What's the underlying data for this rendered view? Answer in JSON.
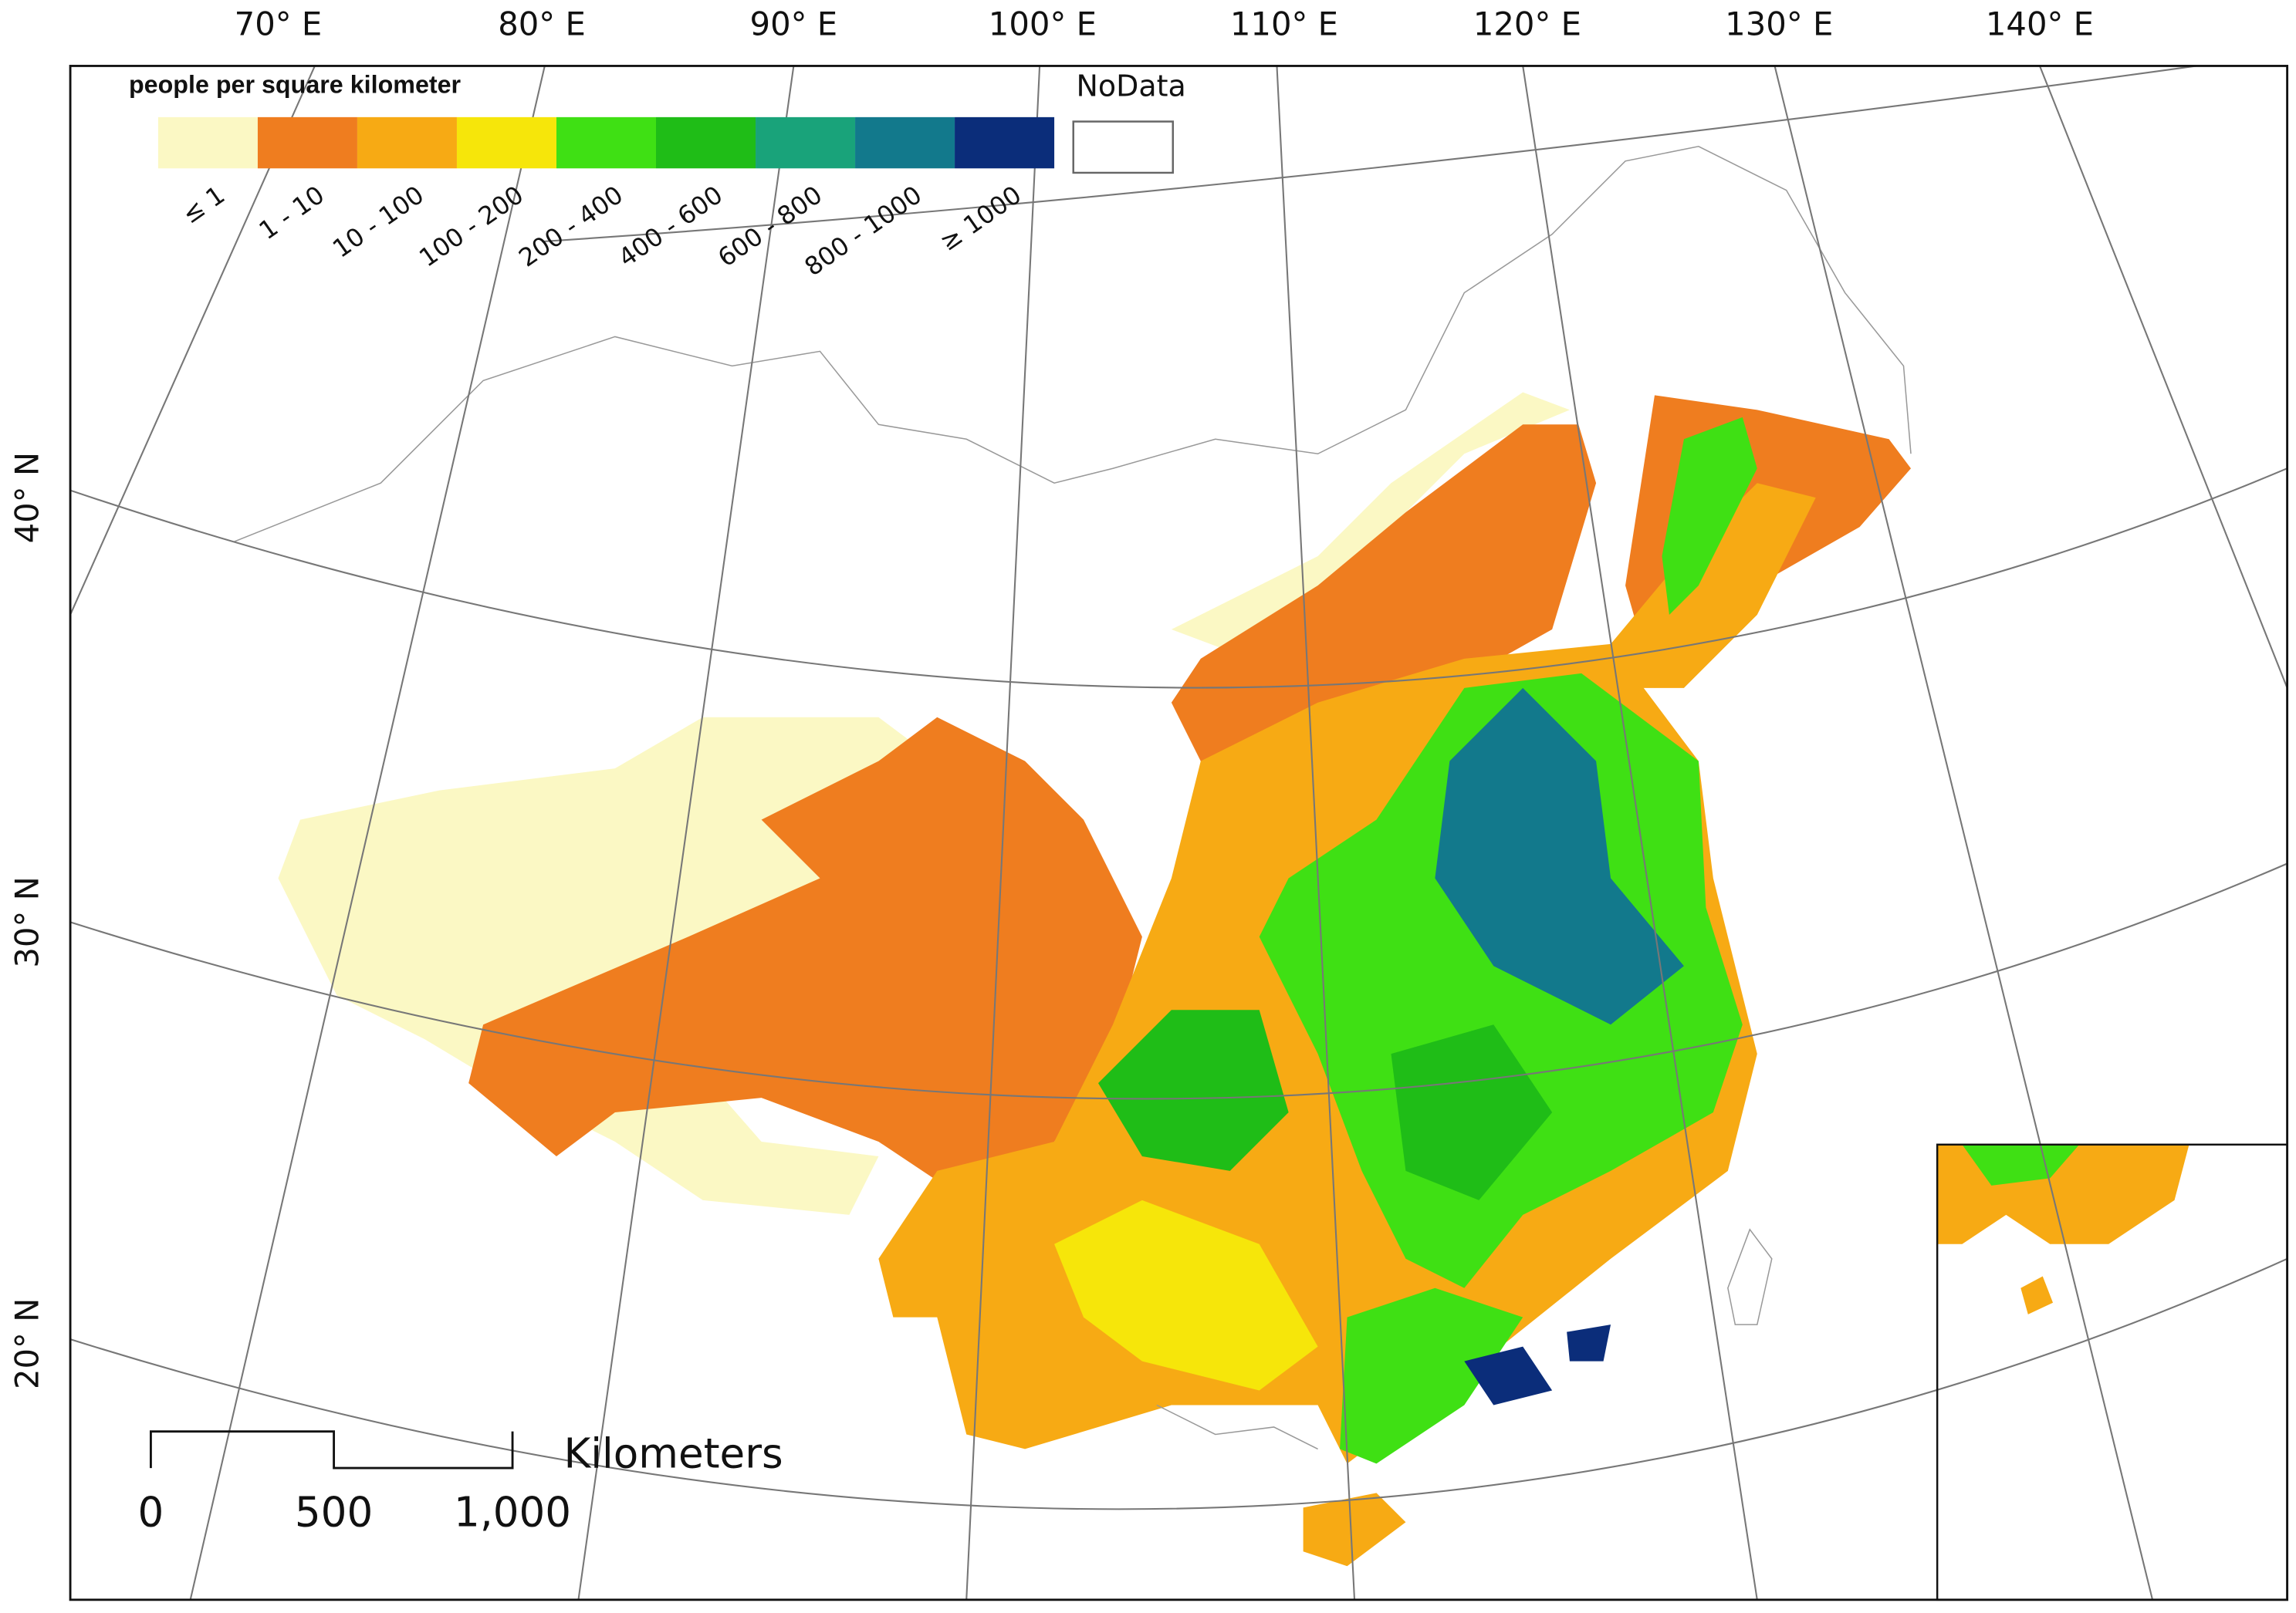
{
  "longitude_labels": [
    "70° E",
    "80° E",
    "90° E",
    "100° E",
    "110° E",
    "120° E",
    "130° E",
    "140° E"
  ],
  "latitude_labels": [
    "40° N",
    "30° N",
    "20° N"
  ],
  "legend": {
    "title": "people per square kilometer",
    "items": [
      {
        "label": "≤ 1",
        "color": "#fbf8c4"
      },
      {
        "label": "1 - 10",
        "color": "#ef7d1f"
      },
      {
        "label": "10 - 100",
        "color": "#f7aa14"
      },
      {
        "label": "100 - 200",
        "color": "#f6e60a"
      },
      {
        "label": "200 - 400",
        "color": "#3fe014"
      },
      {
        "label": "400 - 600",
        "color": "#1fbd17"
      },
      {
        "label": "600 - 800",
        "color": "#19a37a"
      },
      {
        "label": "800 - 1000",
        "color": "#12798c"
      },
      {
        "label": "≥ 1000",
        "color": "#0b2d7a"
      }
    ],
    "nodata": {
      "label": "NoData",
      "color": "#ffffff"
    }
  },
  "scale_bar": {
    "unit": "Kilometers",
    "labels": [
      "0",
      "500",
      "1,000"
    ]
  }
}
